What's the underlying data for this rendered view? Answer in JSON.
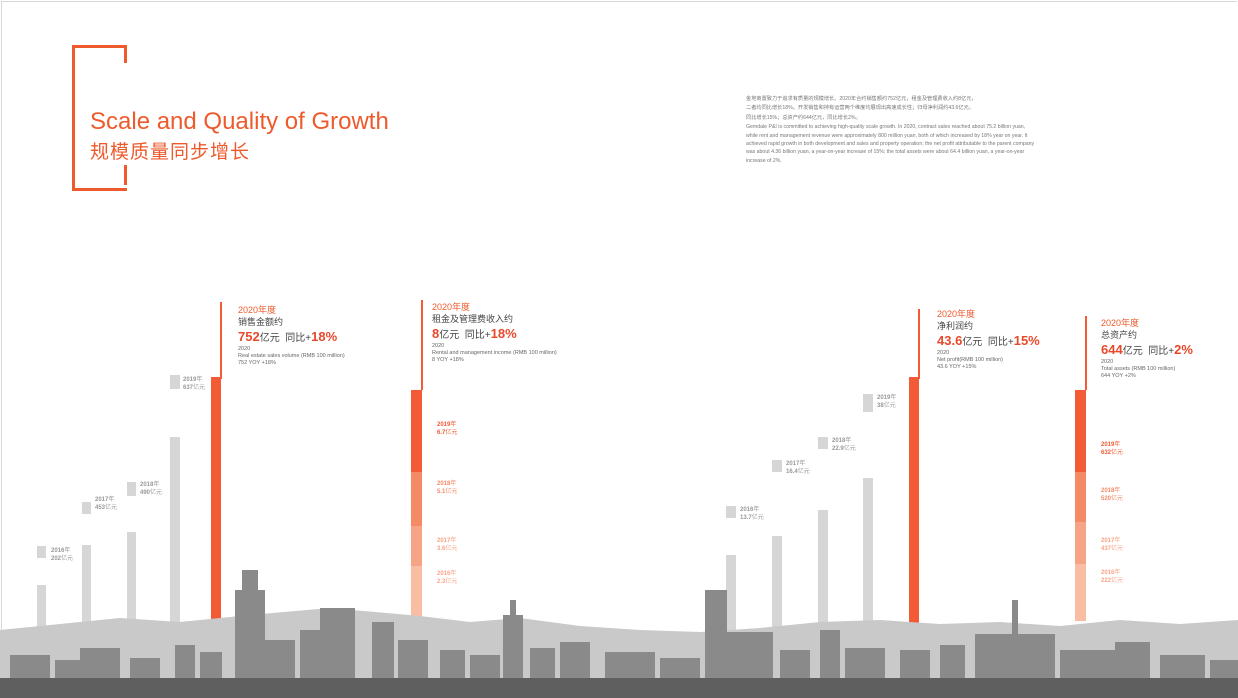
{
  "title": {
    "en": "Scale and Quality of Growth",
    "cn": "规模质量同步增长"
  },
  "intro": {
    "cn_line1": "金地商置致力于追求有质量的规模增长。2020年合约销售额约752亿元，租金及管理费收入约8亿元，",
    "cn_line2": "二者均同比增长18%。开发销售和持有运营两个维度均展现出高速成长性；归母净利润约43.6亿元，",
    "cn_line3": "同比增长15%；总资产约644亿元，同比增长2%。",
    "en": "Gemdale P&I is committed to achieving high-quality scale growth. In 2020, contract sales reached about 75.2 billion yuan, while rent and management revenue were approximately 800 million yuan, both of which increased by 18% year on year. It achieved rapid growth in both development and sales and property operation; the net profit attributable to the parent company was about 4.36 billion yuan, a year-on-year increase of 15%; the total assets were about 64.4 billion yuan, a year-on-year increase of 2%."
  },
  "colors": {
    "accent": "#ee5a2c",
    "grey_bar": "#d6d6d6"
  },
  "metrics": [
    {
      "year_label": "2020年度",
      "name": "销售金额约",
      "value": "752",
      "unit": "亿元",
      "yoy_label": "同比+",
      "yoy": "18%",
      "en_year": "2020",
      "en_name": "Real estate sales volume (RMB 100 million)",
      "en_value": "752  YOY +18%",
      "history": [
        {
          "year": "2016",
          "year_unit": "年",
          "value": "202",
          "unit": "亿元"
        },
        {
          "year": "2017",
          "year_unit": "年",
          "value": "453",
          "unit": "亿元"
        },
        {
          "year": "2018",
          "year_unit": "年",
          "value": "490",
          "unit": "亿元"
        },
        {
          "year": "2019",
          "year_unit": "年",
          "value": "637",
          "unit": "亿元"
        }
      ]
    },
    {
      "year_label": "2020年度",
      "name": "租金及管理费收入约",
      "value": "8",
      "unit": "亿元",
      "yoy_label": "同比+",
      "yoy": "18%",
      "en_year": "2020",
      "en_name": "Rental and management income (RMB 100 million)",
      "en_value": "8  YOY +18%",
      "history": [
        {
          "year": "2019",
          "year_unit": "年",
          "value": "6.7",
          "unit": "亿元"
        },
        {
          "year": "2018",
          "year_unit": "年",
          "value": "5.1",
          "unit": "亿元"
        },
        {
          "year": "2017",
          "year_unit": "年",
          "value": "3.6",
          "unit": "亿元"
        },
        {
          "year": "2016",
          "year_unit": "年",
          "value": "2.3",
          "unit": "亿元"
        }
      ]
    },
    {
      "year_label": "2020年度",
      "name": "净利润约",
      "value": "43.6",
      "unit": "亿元",
      "yoy_label": "同比+",
      "yoy": "15%",
      "en_year": "2020",
      "en_name": "Net profit(RMB 100 million)",
      "en_value": "43.6  YOY +15%",
      "history": [
        {
          "year": "2016",
          "year_unit": "年",
          "value": "13.7",
          "unit": "亿元"
        },
        {
          "year": "2017",
          "year_unit": "年",
          "value": "16.4",
          "unit": "亿元"
        },
        {
          "year": "2018",
          "year_unit": "年",
          "value": "22.9",
          "unit": "亿元"
        },
        {
          "year": "2019",
          "year_unit": "年",
          "value": "38",
          "unit": "亿元"
        }
      ]
    },
    {
      "year_label": "2020年度",
      "name": "总资产约",
      "value": "644",
      "unit": "亿元",
      "yoy_label": "同比+",
      "yoy": "2%",
      "en_year": "2020",
      "en_name": "Total assets (RMB 100 million)",
      "en_value": "644  YOY +2%",
      "history": [
        {
          "year": "2019",
          "year_unit": "年",
          "value": "632",
          "unit": "亿元"
        },
        {
          "year": "2018",
          "year_unit": "年",
          "value": "520",
          "unit": "亿元"
        },
        {
          "year": "2017",
          "year_unit": "年",
          "value": "437",
          "unit": "亿元"
        },
        {
          "year": "2016",
          "year_unit": "年",
          "value": "222",
          "unit": "亿元"
        }
      ]
    }
  ]
}
